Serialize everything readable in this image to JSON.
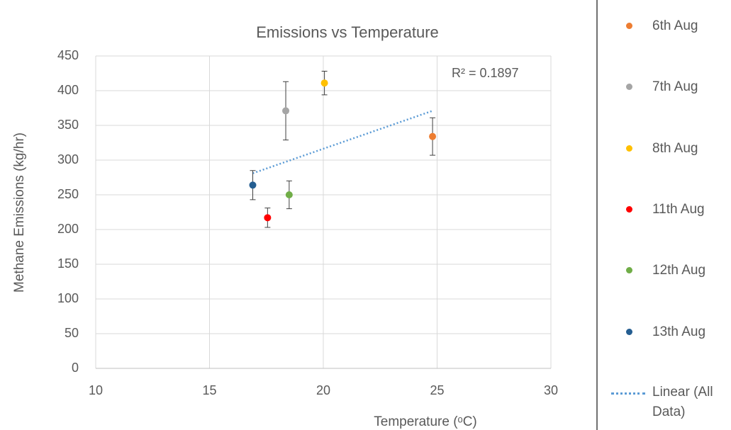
{
  "chart_data": {
    "type": "scatter",
    "title": "Emissions vs Temperature",
    "x_label": "Temperature (ᵒC)",
    "y_label": "Methane Emissions (kg/hr)",
    "xlim": [
      10,
      30
    ],
    "xticks": [
      10,
      15,
      20,
      25,
      30
    ],
    "ylim": [
      0,
      450
    ],
    "yticks": [
      0,
      50,
      100,
      150,
      200,
      250,
      300,
      350,
      400,
      450
    ],
    "grid": true,
    "legend": "right",
    "series": [
      {
        "name": "6th Aug",
        "color": "#ed7d31",
        "x": [
          24.8
        ],
        "values": [
          334
        ],
        "errors": [
          27
        ]
      },
      {
        "name": "7th Aug",
        "color": "#a5a5a5",
        "x": [
          18.35
        ],
        "values": [
          371
        ],
        "errors": [
          42
        ]
      },
      {
        "name": "8th Aug",
        "color": "#ffc000",
        "x": [
          20.05
        ],
        "values": [
          411
        ],
        "errors": [
          17
        ]
      },
      {
        "name": "11th Aug",
        "color": "#ff0000",
        "x": [
          17.55
        ],
        "values": [
          217
        ],
        "errors": [
          14
        ]
      },
      {
        "name": "12th Aug",
        "color": "#70ad47",
        "x": [
          18.5
        ],
        "values": [
          250
        ],
        "errors": [
          20
        ]
      },
      {
        "name": "13th Aug",
        "color": "#255e91",
        "x": [
          16.9
        ],
        "values": [
          264
        ],
        "errors": [
          21
        ]
      }
    ],
    "trendline": {
      "name": "Linear (All Data)",
      "color": "#5b9bd5",
      "x": [
        16.9,
        24.8
      ],
      "values": [
        281,
        371
      ]
    },
    "annotation": "R² = 0.1897"
  }
}
